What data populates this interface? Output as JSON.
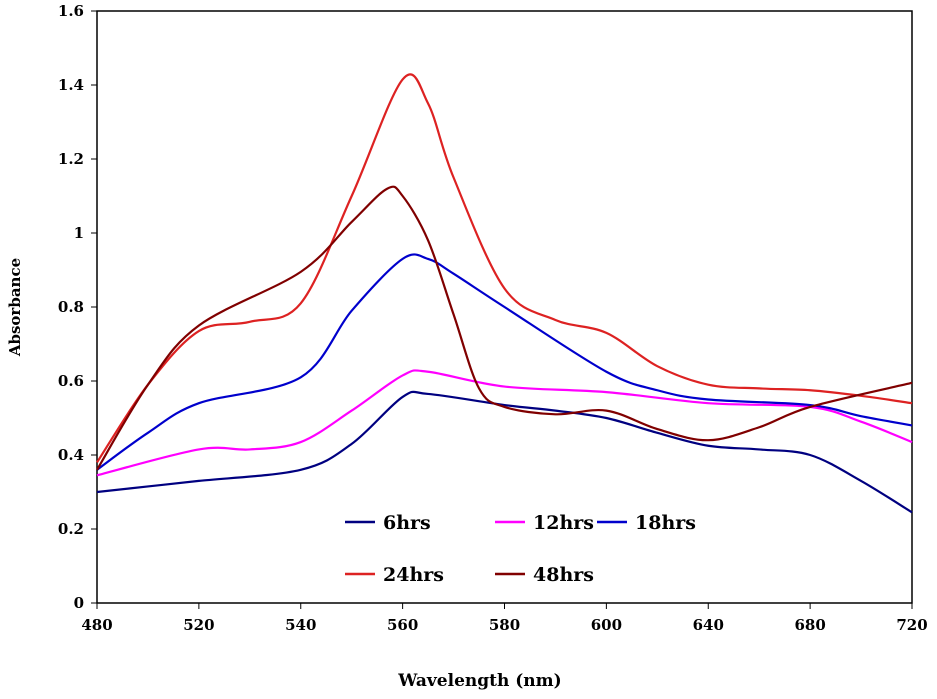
{
  "chart_data": {
    "type": "line",
    "title": "",
    "xlabel": "Wavelength (nm)",
    "ylabel": "Absorbance",
    "xticks": [
      480,
      520,
      540,
      560,
      580,
      600,
      640,
      680,
      720
    ],
    "yticks": [
      "0",
      "0.2",
      "0.4",
      "0.6",
      "0.8",
      "1",
      "1.2",
      "1.4",
      "1.6"
    ],
    "ylim": [
      0,
      1.6
    ],
    "grid": false,
    "legend_position": "bottom-center inside",
    "series": [
      {
        "name": "6hrs",
        "color": "#000080",
        "x": [
          480,
          500,
          520,
          540,
          550,
          560,
          565,
          580,
          590,
          600,
          620,
          640,
          660,
          680,
          700,
          720
        ],
        "y": [
          0.3,
          0.315,
          0.33,
          0.36,
          0.43,
          0.557,
          0.565,
          0.535,
          0.52,
          0.5,
          0.46,
          0.425,
          0.415,
          0.4,
          0.33,
          0.245
        ]
      },
      {
        "name": "12hrs",
        "color": "#ff00ff",
        "x": [
          480,
          520,
          530,
          540,
          550,
          560,
          565,
          580,
          600,
          640,
          680,
          700,
          720
        ],
        "y": [
          0.345,
          0.415,
          0.415,
          0.435,
          0.52,
          0.615,
          0.625,
          0.585,
          0.57,
          0.54,
          0.53,
          0.49,
          0.435
        ]
      },
      {
        "name": "18hrs",
        "color": "#0000cc",
        "x": [
          480,
          500,
          520,
          540,
          550,
          560,
          565,
          570,
          580,
          600,
          620,
          640,
          680,
          700,
          720
        ],
        "y": [
          0.36,
          0.46,
          0.54,
          0.61,
          0.79,
          0.93,
          0.93,
          0.89,
          0.8,
          0.625,
          0.575,
          0.55,
          0.535,
          0.505,
          0.48
        ]
      },
      {
        "name": "24hrs",
        "color": "#dd2222",
        "x": [
          480,
          500,
          520,
          530,
          540,
          550,
          560,
          565,
          570,
          580,
          590,
          600,
          620,
          640,
          660,
          680,
          700,
          720
        ],
        "y": [
          0.38,
          0.59,
          0.735,
          0.76,
          0.81,
          1.1,
          1.415,
          1.35,
          1.15,
          0.85,
          0.765,
          0.73,
          0.64,
          0.59,
          0.58,
          0.575,
          0.56,
          0.54
        ]
      },
      {
        "name": "48hrs",
        "color": "#800000",
        "x": [
          480,
          500,
          520,
          540,
          550,
          557,
          560,
          565,
          570,
          575,
          580,
          590,
          600,
          620,
          640,
          660,
          680,
          720
        ],
        "y": [
          0.36,
          0.59,
          0.75,
          0.895,
          1.03,
          1.12,
          1.1,
          0.98,
          0.78,
          0.58,
          0.53,
          0.51,
          0.52,
          0.47,
          0.44,
          0.475,
          0.53,
          0.595
        ]
      }
    ]
  }
}
